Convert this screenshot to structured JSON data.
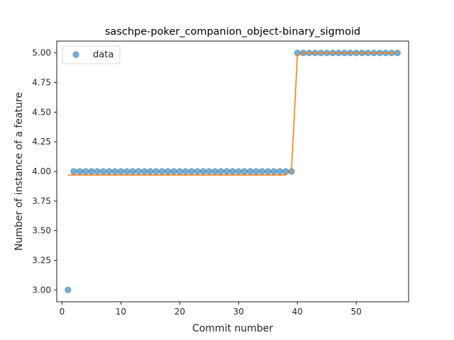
{
  "chart_data": {
    "type": "scatter",
    "title": "saschpe-poker_companion_object-binary_sigmoid",
    "xlabel": "Commit number",
    "ylabel": "Number of instance of a feature",
    "xlim": [
      -0.9,
      58.9
    ],
    "ylim": [
      2.9,
      5.1
    ],
    "x_ticks": [
      0,
      10,
      20,
      30,
      40,
      50
    ],
    "y_ticks": [
      3.0,
      3.25,
      3.5,
      3.75,
      4.0,
      4.25,
      4.5,
      4.75,
      5.0
    ],
    "y_tick_labels": [
      "3.00",
      "3.25",
      "3.50",
      "3.75",
      "4.00",
      "4.25",
      "4.50",
      "4.75",
      "5.00"
    ],
    "grid": false,
    "legend": {
      "position": "top-left",
      "entries": [
        "data"
      ]
    },
    "series": [
      {
        "name": "data",
        "kind": "points",
        "color": "#1f77b4",
        "x": [
          1,
          2,
          3,
          4,
          5,
          6,
          7,
          8,
          9,
          10,
          11,
          12,
          13,
          14,
          15,
          16,
          17,
          18,
          19,
          20,
          21,
          22,
          23,
          24,
          25,
          26,
          27,
          28,
          29,
          30,
          31,
          32,
          33,
          34,
          35,
          36,
          37,
          38,
          39,
          40,
          41,
          42,
          43,
          44,
          45,
          46,
          47,
          48,
          49,
          50,
          51,
          52,
          53,
          54,
          55,
          56,
          57
        ],
        "y": [
          3,
          4,
          4,
          4,
          4,
          4,
          4,
          4,
          4,
          4,
          4,
          4,
          4,
          4,
          4,
          4,
          4,
          4,
          4,
          4,
          4,
          4,
          4,
          4,
          4,
          4,
          4,
          4,
          4,
          4,
          4,
          4,
          4,
          4,
          4,
          4,
          4,
          4,
          4,
          5,
          5,
          5,
          5,
          5,
          5,
          5,
          5,
          5,
          5,
          5,
          5,
          5,
          5,
          5,
          5,
          5,
          5
        ]
      },
      {
        "kind": "line",
        "color": "#ff7f0e",
        "x": [
          1,
          2,
          3,
          4,
          5,
          6,
          7,
          8,
          9,
          10,
          11,
          12,
          13,
          14,
          15,
          16,
          17,
          18,
          19,
          20,
          21,
          22,
          23,
          24,
          25,
          26,
          27,
          28,
          29,
          30,
          31,
          32,
          33,
          34,
          35,
          36,
          37,
          38,
          39,
          40,
          41,
          42,
          43,
          44,
          45,
          46,
          47,
          48,
          49,
          50,
          51,
          52,
          53,
          54,
          55,
          56,
          57
        ],
        "y": [
          3.97,
          3.97,
          3.97,
          3.97,
          3.97,
          3.97,
          3.97,
          3.97,
          3.97,
          3.97,
          3.97,
          3.97,
          3.97,
          3.97,
          3.97,
          3.97,
          3.97,
          3.97,
          3.97,
          3.97,
          3.97,
          3.97,
          3.97,
          3.97,
          3.97,
          3.97,
          3.97,
          3.97,
          3.97,
          3.97,
          3.97,
          3.97,
          3.97,
          3.97,
          3.97,
          3.97,
          3.97,
          3.97,
          4.01,
          4.98,
          5.0,
          5.0,
          5.0,
          5.0,
          5.0,
          5.0,
          5.0,
          5.0,
          5.0,
          5.0,
          5.0,
          5.0,
          5.0,
          5.0,
          5.0,
          5.0,
          5.0
        ]
      }
    ]
  }
}
